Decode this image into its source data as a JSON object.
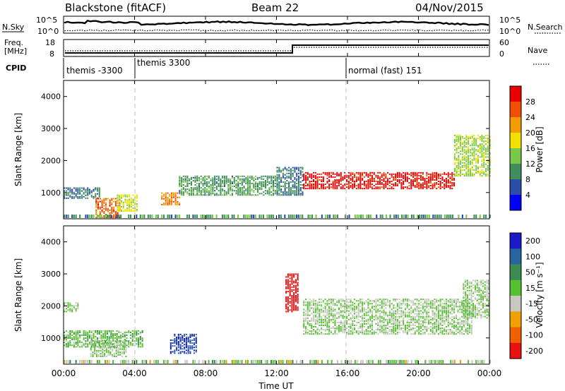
{
  "header": {
    "station": "Blackstone (fitACF)",
    "beam": "Beam 22",
    "date": "04/Nov/2015"
  },
  "noise_panel": {
    "left_label": "N.Sky",
    "left_ticks": [
      "10^5",
      "10^0"
    ],
    "right_ticks": [
      "10^5",
      "10^0"
    ],
    "right_label": "N.Search"
  },
  "freq_panel": {
    "left_label_line1": "Freq.",
    "left_label_line2": "[MHz]",
    "left_ticks": [
      "18",
      "8"
    ],
    "right_ticks": [
      "60",
      "0"
    ],
    "right_label": "Nave"
  },
  "cpid": {
    "label": "CPID",
    "segments": [
      "themis -3300",
      "themis 3300",
      "normal (fast) 151"
    ]
  },
  "time_axis": {
    "ticks": [
      "00:00",
      "04:00",
      "08:00",
      "12:00",
      "16:00",
      "20:00",
      "00:00"
    ],
    "title": "Time UT"
  },
  "range_axis": {
    "ticks": [
      "1000",
      "2000",
      "3000",
      "4000"
    ],
    "title": "Slant Range [km]"
  },
  "power_scale": {
    "title": "Power [dB]",
    "ticks": [
      "4",
      "8",
      "12",
      "16",
      "20",
      "24",
      "28"
    ],
    "colors": [
      "#0000ff",
      "#2a4da8",
      "#3f8f5a",
      "#7ac84a",
      "#f4e000",
      "#f59a00",
      "#f05000",
      "#e80000"
    ]
  },
  "velocity_scale": {
    "title": "Velocity [m s⁻¹]",
    "ticks": [
      "200",
      "100",
      "50",
      "15",
      "-15",
      "-50",
      "-100",
      "-200"
    ],
    "colors": [
      "#1a1ac8",
      "#2a64a0",
      "#3c8c50",
      "#55c030",
      "#c8c8c0",
      "#f0a000",
      "#f06000",
      "#e81010"
    ]
  },
  "chart_data": [
    {
      "type": "heatmap",
      "title": "Power",
      "xlabel": "Time UT",
      "ylabel": "Slant Range [km]",
      "xlim": [
        0,
        24
      ],
      "ylim": [
        180,
        4500
      ],
      "colorbar": {
        "label": "Power [dB]",
        "range": [
          0,
          30
        ]
      },
      "bands": [
        {
          "t": [
            0,
            2
          ],
          "r": [
            800,
            1150
          ],
          "v": 8
        },
        {
          "t": [
            1.8,
            3.2
          ],
          "r": [
            200,
            800
          ],
          "v": 24
        },
        {
          "t": [
            3,
            4.2
          ],
          "r": [
            400,
            900
          ],
          "v": 16
        },
        {
          "t": [
            5.5,
            6.5
          ],
          "r": [
            600,
            1000
          ],
          "v": 22
        },
        {
          "t": [
            6.5,
            12
          ],
          "r": [
            900,
            1500
          ],
          "v": 10
        },
        {
          "t": [
            12,
            13.5
          ],
          "r": [
            900,
            1800
          ],
          "v": 8
        },
        {
          "t": [
            13.5,
            22
          ],
          "r": [
            1100,
            1600
          ],
          "v": 28
        },
        {
          "t": [
            22,
            24
          ],
          "r": [
            1500,
            2800
          ],
          "v": 14
        }
      ]
    },
    {
      "type": "heatmap",
      "title": "Velocity",
      "xlabel": "Time UT",
      "ylabel": "Slant Range [km]",
      "xlim": [
        0,
        24
      ],
      "ylim": [
        180,
        4500
      ],
      "colorbar": {
        "label": "Velocity [m s-1]",
        "range": [
          -200,
          200
        ]
      },
      "bands": [
        {
          "t": [
            0,
            0.8
          ],
          "r": [
            1800,
            2100
          ],
          "v": 0
        },
        {
          "t": [
            0,
            4.5
          ],
          "r": [
            700,
            1200
          ],
          "v": 30
        },
        {
          "t": [
            1.5,
            3.5
          ],
          "r": [
            400,
            900
          ],
          "v": 0
        },
        {
          "t": [
            6,
            7.5
          ],
          "r": [
            500,
            1100
          ],
          "v": 150
        },
        {
          "t": [
            12.5,
            13.2
          ],
          "r": [
            1800,
            3000
          ],
          "v": -200
        },
        {
          "t": [
            13.5,
            23
          ],
          "r": [
            1100,
            2200
          ],
          "v": 0
        },
        {
          "t": [
            22.5,
            24
          ],
          "r": [
            1600,
            2800
          ],
          "v": 0
        }
      ]
    }
  ]
}
